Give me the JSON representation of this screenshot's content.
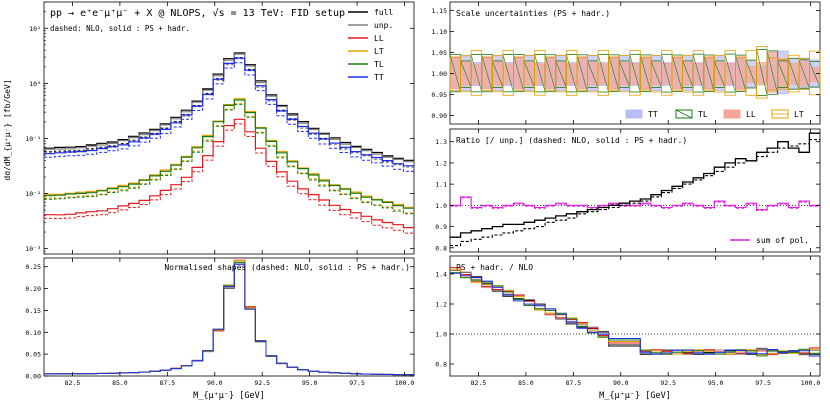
{
  "colors": {
    "full": "#000000",
    "unp": "#808080",
    "LL": "#e8191c",
    "LT": "#e6a000",
    "TL": "#1a7a10",
    "TT": "#1f2ef0",
    "pol_sum": "#e020e0"
  },
  "xaxis": {
    "label": "M_{μ⁺μ⁻} [GeV]",
    "ticks": [
      "82.5",
      "85.0",
      "87.5",
      "90.0",
      "92.5",
      "95.0",
      "97.5",
      "100.0"
    ],
    "ticks_ratio": [
      "82.5",
      "85.0",
      "87.5",
      "90.0",
      "92.5",
      "95.0",
      "97.5",
      "100.0"
    ],
    "tick_values": [
      82.5,
      85.0,
      87.5,
      90.0,
      92.5,
      95.0,
      97.5,
      100.0
    ],
    "range": [
      81,
      100.5
    ]
  },
  "chart_data": [
    {
      "id": "main",
      "type": "line",
      "title": "pp → e⁺e⁻μ⁺μ⁻ + X @ NLOPS, √s = 13 TeV: FID setup",
      "subtitle": "dashed: NLO, solid : PS + hadr.",
      "ylabel": "dσ/dM_{μ⁺μ⁻} [fb/GeV]",
      "yscale": "log",
      "ylim": [
        0.0008,
        30
      ],
      "yticks": [
        {
          "v": 0.001,
          "label": "10⁻³"
        },
        {
          "v": 0.01,
          "label": "10⁻²"
        },
        {
          "v": 0.1,
          "label": "10⁻¹"
        },
        {
          "v": 1,
          "label": "10⁰"
        },
        {
          "v": 10,
          "label": "10¹"
        }
      ],
      "legend": {
        "position": "top-right",
        "entries": [
          "full",
          "unp.",
          "LL",
          "LT",
          "TL",
          "TT"
        ]
      },
      "series": [
        {
          "name": "full",
          "key": "full",
          "peak": 3.6
        },
        {
          "name": "unp.",
          "key": "unp",
          "peak": 3.4
        },
        {
          "name": "LL",
          "key": "LL",
          "peak": 0.22
        },
        {
          "name": "LT",
          "key": "LT",
          "peak": 0.52
        },
        {
          "name": "TL",
          "key": "TL",
          "peak": 0.5
        },
        {
          "name": "TT",
          "key": "TT",
          "peak": 2.9
        }
      ]
    },
    {
      "id": "norm",
      "type": "line",
      "title": "Normalised shapes (dashed: NLO, solid : PS + hadr.)",
      "ylim": [
        0,
        0.27
      ],
      "yticks": [
        {
          "v": 0.0,
          "label": "0.00"
        },
        {
          "v": 0.05,
          "label": "0.05"
        },
        {
          "v": 0.1,
          "label": "0.10"
        },
        {
          "v": 0.15,
          "label": "0.15"
        },
        {
          "v": 0.2,
          "label": "0.20"
        },
        {
          "v": 0.25,
          "label": "0.25"
        }
      ],
      "peak_value": 0.26
    },
    {
      "id": "scale",
      "type": "area",
      "title": "Scale uncertainties (PS + hadr.)",
      "ylim": [
        0.88,
        1.17
      ],
      "yticks": [
        {
          "v": 0.9,
          "label": "0.90"
        },
        {
          "v": 0.95,
          "label": "0.95"
        },
        {
          "v": 1.0,
          "label": "1.00"
        },
        {
          "v": 1.05,
          "label": "1.05"
        },
        {
          "v": 1.1,
          "label": "1.10"
        },
        {
          "v": 1.15,
          "label": "1.15"
        }
      ],
      "legend": {
        "position": "bottom-right",
        "entries": [
          "TT",
          "TL",
          "LL",
          "LT"
        ]
      }
    },
    {
      "id": "ratio",
      "type": "line",
      "title": "Ratio [/ unp.] (dashed: NLO, solid : PS + hadr.)",
      "ylim": [
        0.78,
        1.36
      ],
      "yticks": [
        {
          "v": 0.8,
          "label": "0.8"
        },
        {
          "v": 0.9,
          "label": "0.9"
        },
        {
          "v": 1.0,
          "label": "1.0"
        },
        {
          "v": 1.1,
          "label": "1.1"
        },
        {
          "v": 1.2,
          "label": "1.2"
        },
        {
          "v": 1.3,
          "label": "1.3"
        }
      ],
      "legend": {
        "position": "bottom-right",
        "entries": [
          "sum of pol."
        ]
      },
      "full_solid": [
        0.85,
        0.87,
        0.88,
        0.89,
        0.9,
        0.91,
        0.91,
        0.92,
        0.93,
        0.94,
        0.95,
        0.96,
        0.97,
        0.98,
        0.99,
        1.0,
        1.01,
        1.02,
        1.03,
        1.05,
        1.07,
        1.09,
        1.11,
        1.13,
        1.15,
        1.18,
        1.2,
        1.22,
        1.21,
        1.25,
        1.27,
        1.3,
        1.27,
        1.25,
        1.34
      ],
      "full_dashed": [
        0.81,
        0.83,
        0.84,
        0.85,
        0.86,
        0.87,
        0.88,
        0.89,
        0.9,
        0.92,
        0.93,
        0.94,
        0.96,
        0.97,
        0.98,
        0.99,
        1.0,
        1.01,
        1.02,
        1.04,
        1.06,
        1.08,
        1.1,
        1.12,
        1.14,
        1.16,
        1.18,
        1.2,
        1.21,
        1.23,
        1.25,
        1.27,
        1.28,
        1.29,
        1.31
      ],
      "pol_sum": [
        1.0,
        1.04,
        0.99,
        1.0,
        0.99,
        1.0,
        1.01,
        1.0,
        0.99,
        1.0,
        1.01,
        1.0,
        1.0,
        0.99,
        1.0,
        1.01,
        1.0,
        1.0,
        1.01,
        1.0,
        0.99,
        1.0,
        1.01,
        1.0,
        0.99,
        1.02,
        1.0,
        0.99,
        1.01,
        0.98,
        1.0,
        1.01,
        0.99,
        1.02,
        1.0
      ]
    },
    {
      "id": "pshadr",
      "type": "line",
      "title": "PS + hadr. / NLO",
      "ylim": [
        0.72,
        1.52
      ],
      "yticks": [
        {
          "v": 0.8,
          "label": "0.8"
        },
        {
          "v": 1.0,
          "label": "1.0"
        },
        {
          "v": 1.2,
          "label": "1.2"
        },
        {
          "v": 1.4,
          "label": "1.4"
        }
      ]
    }
  ]
}
